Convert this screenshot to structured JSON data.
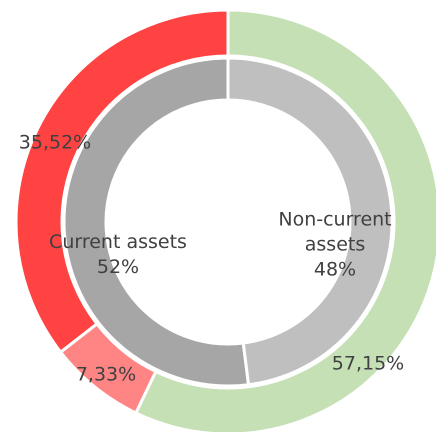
{
  "chart_data": {
    "type": "nested-donut",
    "rings": [
      {
        "categories": [
          "Current assets",
          "Non-current assets"
        ],
        "values": [
          52,
          48
        ],
        "value_labels": [
          "52%",
          "48%"
        ],
        "colors": [
          "#a6a6a6",
          "#bfbfbf"
        ]
      },
      {
        "values": [
          35.52,
          7.33,
          57.15
        ],
        "value_labels": [
          "35,52%",
          "7,33%",
          "57,15%"
        ],
        "colors": [
          "#ff4343",
          "#ff8585",
          "#c5e0b4"
        ]
      }
    ]
  }
}
